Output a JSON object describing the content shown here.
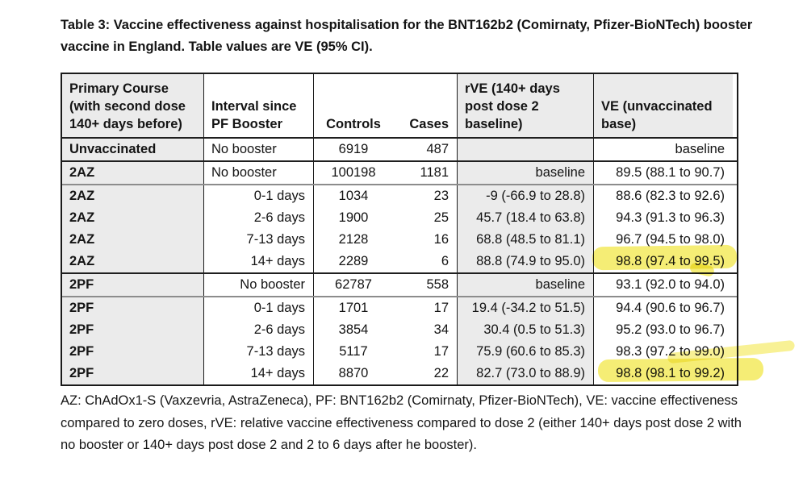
{
  "page": {
    "title_lines": [
      "Table 3: Vaccine effectiveness against hospitalisation for the BNT162b2 (Comirnaty, Pfizer-BioNTech) booster",
      "vaccine in England. Table values are VE (95% CI)."
    ],
    "footnote_lines": [
      "AZ: ChAdOx1-S (Vaxzevria, AstraZeneca), PF: BNT162b2 (Comirnaty, Pfizer-BioNTech), VE: vaccine effectiveness",
      "compared to zero doses, rVE: relative vaccine effectiveness compared to dose 2 (either 140+ days post dose 2 with",
      "no booster or 140+ days post dose 2 and 2 to 6 days after he booster)."
    ]
  },
  "colors": {
    "highlight": "#f3e84e",
    "shaded_cell": "#ebebeb",
    "border": "#1a1a1a"
  },
  "table": {
    "header": {
      "primary_course": "Primary Course (with second dose 140+ days before)",
      "interval": "Interval since PF Booster",
      "controls": "Controls",
      "cases": "Cases",
      "rve": "rVE (140+ days post dose 2 baseline)",
      "ve": "VE (unvaccinated base)"
    },
    "rows": [
      {
        "primary_course": "Unvaccinated",
        "interval": "No booster",
        "controls": "6919",
        "cases": "487",
        "rve": "",
        "ve": "baseline"
      },
      {
        "primary_course": "2AZ",
        "interval": "No booster",
        "controls": "100198",
        "cases": "1181",
        "rve": "baseline",
        "ve": "89.5 (88.1 to 90.7)"
      },
      {
        "primary_course": "2AZ",
        "interval": "0-1 days",
        "controls": "1034",
        "cases": "23",
        "rve": "-9 (-66.9 to 28.8)",
        "ve": "88.6 (82.3 to 92.6)"
      },
      {
        "primary_course": "2AZ",
        "interval": "2-6 days",
        "controls": "1900",
        "cases": "25",
        "rve": "45.7 (18.4 to 63.8)",
        "ve": "94.3 (91.3 to 96.3)"
      },
      {
        "primary_course": "2AZ",
        "interval": "7-13 days",
        "controls": "2128",
        "cases": "16",
        "rve": "68.8 (48.5 to 81.1)",
        "ve": "96.7 (94.5 to 98.0)"
      },
      {
        "primary_course": "2AZ",
        "interval": "14+ days",
        "controls": "2289",
        "cases": "6",
        "rve": "88.8 (74.9 to 95.0)",
        "ve": "98.8 (97.4 to 99.5)"
      },
      {
        "primary_course": "2PF",
        "interval": "No booster",
        "controls": "62787",
        "cases": "558",
        "rve": "baseline",
        "ve": "93.1 (92.0 to 94.0)"
      },
      {
        "primary_course": "2PF",
        "interval": "0-1 days",
        "controls": "1701",
        "cases": "17",
        "rve": "19.4 (-34.2 to 51.5)",
        "ve": "94.4 (90.6 to 96.7)"
      },
      {
        "primary_course": "2PF",
        "interval": "2-6 days",
        "controls": "3854",
        "cases": "34",
        "rve": "30.4 (0.5 to 51.3)",
        "ve": "95.2 (93.0 to 96.7)"
      },
      {
        "primary_course": "2PF",
        "interval": "7-13 days",
        "controls": "5117",
        "cases": "17",
        "rve": "75.9 (60.6 to 85.3)",
        "ve": "98.3 (97.2 to 99.0)"
      },
      {
        "primary_course": "2PF",
        "interval": "14+ days",
        "controls": "8870",
        "cases": "22",
        "rve": "82.7 (73.0 to 88.9)",
        "ve": "98.8 (98.1 to 99.2)"
      }
    ],
    "highlighted_ve_values": [
      "98.8 (97.4 to 99.5)",
      "98.8 (98.1 to 99.2)"
    ]
  }
}
